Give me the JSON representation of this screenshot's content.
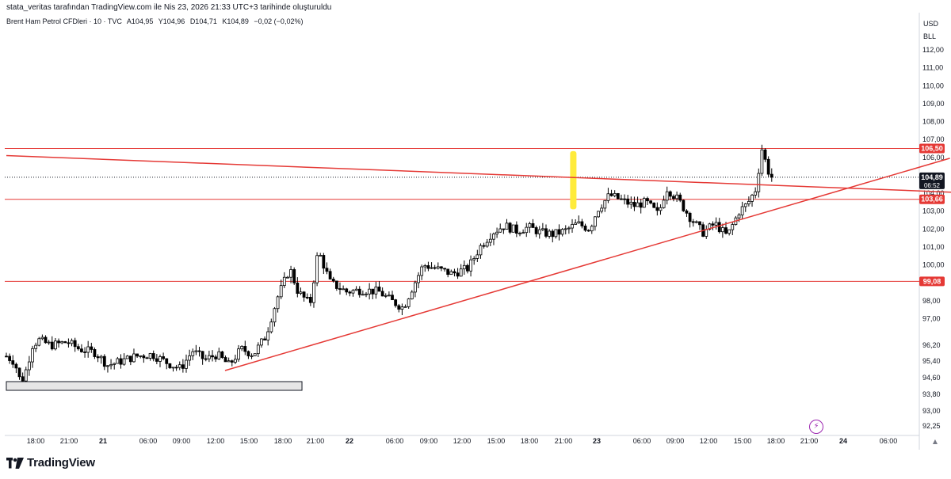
{
  "attribution": "stata_veritas tarafından TradingView.com ile Nis 23, 2026 21:33 UTC+3 tarihinde oluşturuldu",
  "symbol": {
    "name": "Brent Ham Petrol CFDleri · 10 · TVC",
    "open": "A104,95",
    "high": "Y104,96",
    "low": "D104,71",
    "close": "K104,89",
    "change": "−0,02 (−0,02%)"
  },
  "currency": "USD",
  "unit": "BLL",
  "logo_text": "TradingView",
  "colors": {
    "up_candle": "#ffffff",
    "down_candle": "#000000",
    "line_red": "#e53935",
    "highlight": "#ffeb3b",
    "zone": "#e6e6e6",
    "price_tag": "#e53935",
    "last_price": "#131722"
  },
  "chart_data": {
    "type": "candlestick",
    "y_scale": "linear",
    "ylim": [
      92.0,
      113.5
    ],
    "y_ticks": [
      "112,00",
      "111,00",
      "110,00",
      "109,00",
      "108,00",
      "107,00",
      "106,00",
      "104,00",
      "103,00",
      "102,00",
      "101,00",
      "100,00",
      "98,00",
      "97,00",
      "96,20",
      "95,40",
      "94,60",
      "93,80",
      "93,00",
      "92,25"
    ],
    "x_ticks": [
      "18:00",
      "21:00",
      "21",
      "06:00",
      "09:00",
      "12:00",
      "15:00",
      "18:00",
      "21:00",
      "22",
      "06:00",
      "09:00",
      "12:00",
      "15:00",
      "18:00",
      "21:00",
      "23",
      "06:00",
      "09:00",
      "12:00",
      "15:00",
      "18:00",
      "21:00",
      "24",
      "06:00"
    ],
    "bold_x_ticks": [
      "21",
      "22",
      "23",
      "24"
    ],
    "price_tags": [
      {
        "value": 106.5,
        "label": "106,50"
      },
      {
        "value": 103.66,
        "label": "103,66"
      },
      {
        "value": 99.08,
        "label": "99,08"
      }
    ],
    "last_price": {
      "value": 104.89,
      "label": "104,89",
      "countdown": "06:52"
    },
    "horizontal_lines": [
      106.5,
      103.66,
      99.08
    ],
    "trend_lines": [
      {
        "name": "descending",
        "from": {
          "t": 0.0,
          "price": 106.1
        },
        "to": {
          "t": 1.17,
          "price": 104.05
        }
      },
      {
        "name": "ascending",
        "from": {
          "t": 0.27,
          "price": 94.1
        },
        "to": {
          "t": 1.165,
          "price": 105.95
        }
      }
    ],
    "zone": {
      "t_from": 0.0,
      "t_to": 0.365,
      "price_top": 94.35,
      "price_bottom": 93.95
    },
    "highlight_bar": {
      "t": 0.7,
      "price_top": 106.35,
      "price_bottom": 103.1
    },
    "anchors": [
      [
        0.0,
        94.9
      ],
      [
        0.01,
        94.6
      ],
      [
        0.018,
        93.4
      ],
      [
        0.025,
        94.2
      ],
      [
        0.032,
        95.5
      ],
      [
        0.04,
        95.8
      ],
      [
        0.055,
        95.5
      ],
      [
        0.075,
        95.7
      ],
      [
        0.09,
        95.3
      ],
      [
        0.11,
        95.1
      ],
      [
        0.125,
        94.4
      ],
      [
        0.14,
        94.6
      ],
      [
        0.16,
        94.9
      ],
      [
        0.18,
        95.0
      ],
      [
        0.2,
        94.5
      ],
      [
        0.215,
        94.2
      ],
      [
        0.23,
        95.2
      ],
      [
        0.245,
        94.7
      ],
      [
        0.26,
        95.0
      ],
      [
        0.275,
        94.4
      ],
      [
        0.29,
        95.3
      ],
      [
        0.305,
        95.0
      ],
      [
        0.32,
        96.0
      ],
      [
        0.335,
        98.2
      ],
      [
        0.35,
        99.8
      ],
      [
        0.36,
        98.5
      ],
      [
        0.375,
        97.8
      ],
      [
        0.385,
        100.8
      ],
      [
        0.4,
        99.0
      ],
      [
        0.42,
        98.5
      ],
      [
        0.44,
        98.6
      ],
      [
        0.46,
        98.5
      ],
      [
        0.475,
        98.0
      ],
      [
        0.49,
        97.6
      ],
      [
        0.5,
        98.6
      ],
      [
        0.515,
        100.0
      ],
      [
        0.53,
        99.8
      ],
      [
        0.55,
        99.5
      ],
      [
        0.57,
        99.8
      ],
      [
        0.585,
        101.0
      ],
      [
        0.6,
        101.8
      ],
      [
        0.615,
        102.2
      ],
      [
        0.63,
        101.9
      ],
      [
        0.645,
        102.1
      ],
      [
        0.66,
        101.8
      ],
      [
        0.675,
        101.7
      ],
      [
        0.69,
        101.9
      ],
      [
        0.705,
        102.3
      ],
      [
        0.72,
        102.0
      ],
      [
        0.73,
        103.1
      ],
      [
        0.745,
        103.9
      ],
      [
        0.76,
        103.6
      ],
      [
        0.775,
        103.3
      ],
      [
        0.79,
        103.5
      ],
      [
        0.805,
        102.8
      ],
      [
        0.815,
        104.3
      ],
      [
        0.83,
        103.6
      ],
      [
        0.845,
        102.6
      ],
      [
        0.86,
        101.8
      ],
      [
        0.875,
        102.3
      ],
      [
        0.89,
        101.6
      ],
      [
        0.905,
        103.0
      ],
      [
        0.915,
        103.4
      ],
      [
        0.925,
        104.2
      ],
      [
        0.933,
        106.5
      ],
      [
        0.94,
        105.3
      ],
      [
        0.945,
        104.89
      ]
    ]
  }
}
